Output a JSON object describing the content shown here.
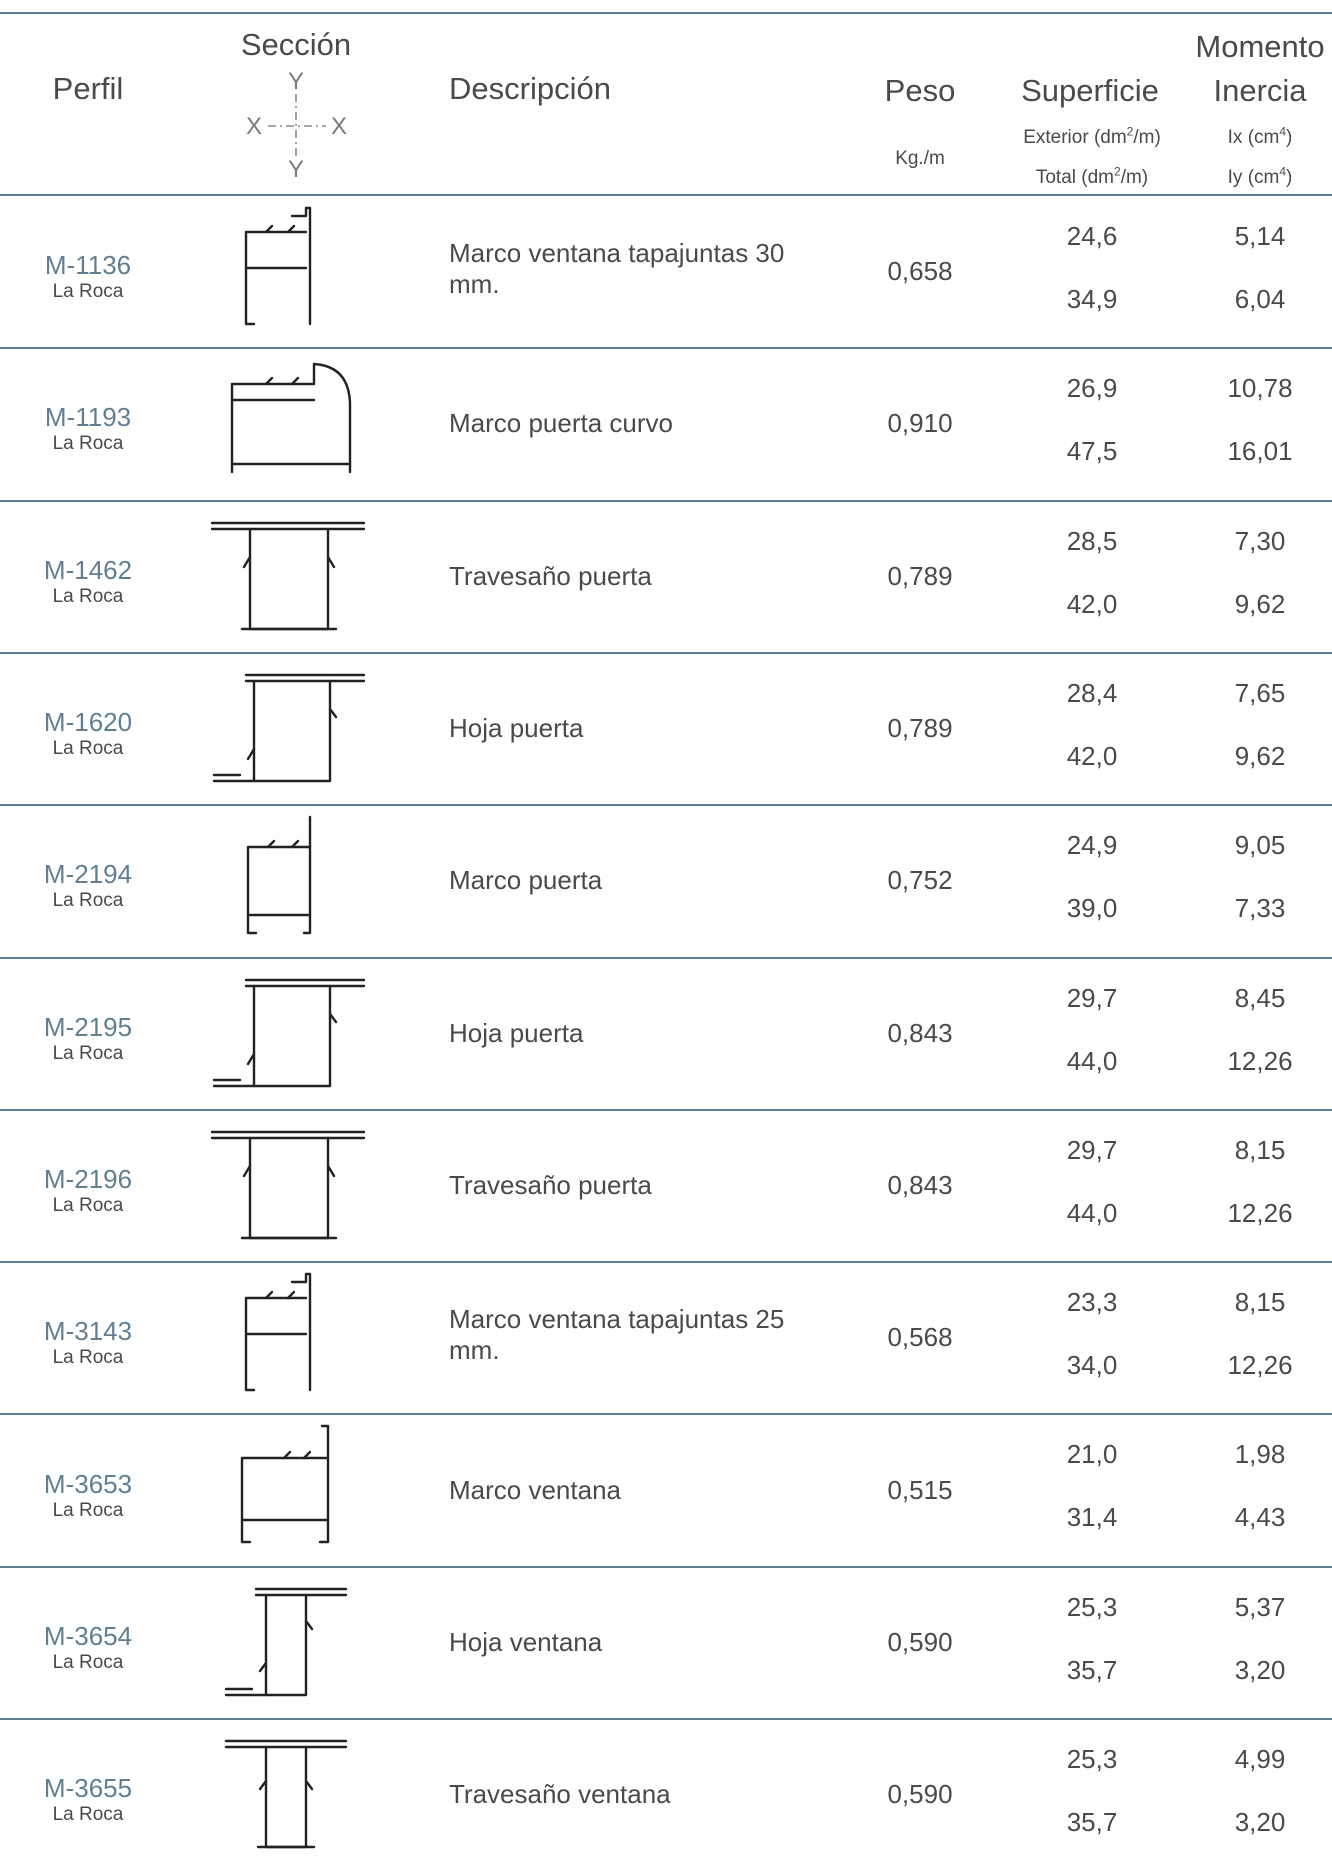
{
  "header": {
    "perfil": "Perfil",
    "seccion": "Sección",
    "axis_y_top": "Y",
    "axis_x_left": "X",
    "axis_x_right": "X",
    "axis_y_bottom": "Y",
    "descripcion": "Descripción",
    "peso": "Peso",
    "peso_unit": "Kg./m",
    "superficie": "Superficie",
    "superficie_exterior": "Exterior (dm",
    "superficie_total": "Total (dm",
    "superficie_unit_tail": "/m)",
    "sup_exp": "2",
    "momento": "Momento",
    "inercia": "Inercia",
    "ix": "Ix (cm",
    "iy": "Iy (cm",
    "inercia_exp": "4",
    "close_paren": ")"
  },
  "rows": [
    {
      "code": "M-1136",
      "brand": "La Roca",
      "description": "Marco ventana tapajuntas 30 mm.",
      "peso": "0,658",
      "exterior": "24,6",
      "total": "34,9",
      "ix": "5,14",
      "iy": "6,04",
      "section_icon": "profile-frame-window-cover"
    },
    {
      "code": "M-1193",
      "brand": "La Roca",
      "description": "Marco puerta curvo",
      "peso": "0,910",
      "exterior": "26,9",
      "total": "47,5",
      "ix": "10,78",
      "iy": "16,01",
      "section_icon": "profile-door-frame-curved"
    },
    {
      "code": "M-1462",
      "brand": "La Roca",
      "description": "Travesaño puerta",
      "peso": "0,789",
      "exterior": "28,5",
      "total": "42,0",
      "ix": "7,30",
      "iy": "9,62",
      "section_icon": "profile-door-transom"
    },
    {
      "code": "M-1620",
      "brand": "La Roca",
      "description": "Hoja puerta",
      "peso": "0,789",
      "exterior": "28,4",
      "total": "42,0",
      "ix": "7,65",
      "iy": "9,62",
      "section_icon": "profile-door-leaf"
    },
    {
      "code": "M-2194",
      "brand": "La Roca",
      "description": "Marco puerta",
      "peso": "0,752",
      "exterior": "24,9",
      "total": "39,0",
      "ix": "9,05",
      "iy": "7,33",
      "section_icon": "profile-door-frame"
    },
    {
      "code": "M-2195",
      "brand": "La Roca",
      "description": "Hoja puerta",
      "peso": "0,843",
      "exterior": "29,7",
      "total": "44,0",
      "ix": "8,45",
      "iy": "12,26",
      "section_icon": "profile-door-leaf"
    },
    {
      "code": "M-2196",
      "brand": "La Roca",
      "description": "Travesaño puerta",
      "peso": "0,843",
      "exterior": "29,7",
      "total": "44,0",
      "ix": "8,15",
      "iy": "12,26",
      "section_icon": "profile-door-transom"
    },
    {
      "code": "M-3143",
      "brand": "La Roca",
      "description": "Marco ventana tapajuntas 25 mm.",
      "peso": "0,568",
      "exterior": "23,3",
      "total": "34,0",
      "ix": "8,15",
      "iy": "12,26",
      "section_icon": "profile-frame-window-cover"
    },
    {
      "code": "M-3653",
      "brand": "La Roca",
      "description": "Marco ventana",
      "peso": "0,515",
      "exterior": "21,0",
      "total": "31,4",
      "ix": "1,98",
      "iy": "4,43",
      "section_icon": "profile-window-frame"
    },
    {
      "code": "M-3654",
      "brand": "La Roca",
      "description": "Hoja ventana",
      "peso": "0,590",
      "exterior": "25,3",
      "total": "35,7",
      "ix": "5,37",
      "iy": "3,20",
      "section_icon": "profile-window-leaf"
    },
    {
      "code": "M-3655",
      "brand": "La Roca",
      "description": "Travesaño ventana",
      "peso": "0,590",
      "exterior": "25,3",
      "total": "35,7",
      "ix": "4,99",
      "iy": "3,20",
      "section_icon": "profile-window-transom"
    }
  ]
}
